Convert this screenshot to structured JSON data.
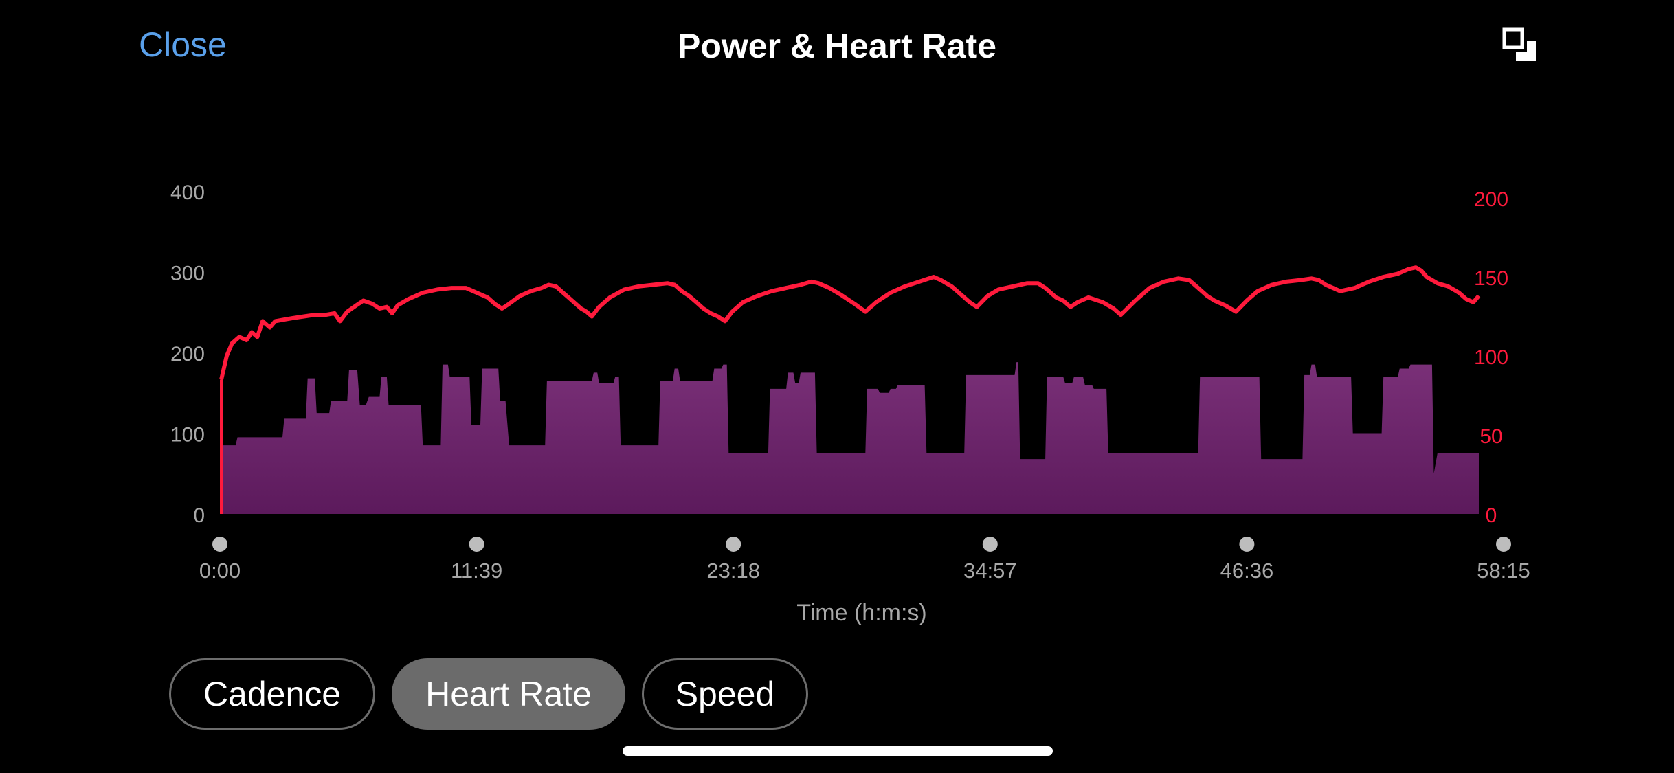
{
  "header": {
    "close_label": "Close",
    "title": "Power & Heart Rate",
    "expand_icon": "expand-icon"
  },
  "toggles": [
    {
      "label": "Cadence",
      "active": false
    },
    {
      "label": "Heart Rate",
      "active": true
    },
    {
      "label": "Speed",
      "active": false
    }
  ],
  "colors": {
    "accent": "#5aa0ea",
    "heart_rate_line": "#ff1a3c",
    "power_fill_top": "#7a3078",
    "power_fill_bottom": "#5c1a5c",
    "axis_text": "#a8a8a8"
  },
  "chart_data": {
    "type": "area",
    "xlabel": "Time (h:m:s)",
    "x_ticks": [
      "0:00",
      "11:39",
      "23:18",
      "34:57",
      "46:36",
      "58:15"
    ],
    "y_left": {
      "ticks": [
        "0",
        "100",
        "200",
        "300",
        "400"
      ],
      "range": [
        0,
        400
      ]
    },
    "y_right": {
      "ticks": [
        "0",
        "50",
        "100",
        "150",
        "200"
      ],
      "range": [
        0,
        200
      ]
    },
    "x_range_seconds": [
      0,
      3495
    ],
    "series": [
      {
        "axis": "left",
        "style": "area",
        "color": "#7a3078",
        "points": [
          [
            0,
            85
          ],
          [
            40,
            85
          ],
          [
            45,
            95
          ],
          [
            170,
            95
          ],
          [
            175,
            118
          ],
          [
            235,
            118
          ],
          [
            240,
            168
          ],
          [
            260,
            168
          ],
          [
            265,
            125
          ],
          [
            300,
            125
          ],
          [
            305,
            140
          ],
          [
            350,
            140
          ],
          [
            355,
            178
          ],
          [
            378,
            178
          ],
          [
            385,
            135
          ],
          [
            402,
            135
          ],
          [
            410,
            145
          ],
          [
            440,
            145
          ],
          [
            445,
            170
          ],
          [
            460,
            170
          ],
          [
            465,
            135
          ],
          [
            555,
            135
          ],
          [
            560,
            85
          ],
          [
            610,
            85
          ],
          [
            615,
            185
          ],
          [
            630,
            185
          ],
          [
            635,
            170
          ],
          [
            690,
            170
          ],
          [
            695,
            110
          ],
          [
            720,
            110
          ],
          [
            725,
            180
          ],
          [
            770,
            180
          ],
          [
            775,
            140
          ],
          [
            790,
            140
          ],
          [
            800,
            85
          ],
          [
            900,
            85
          ],
          [
            905,
            165
          ],
          [
            1030,
            165
          ],
          [
            1035,
            175
          ],
          [
            1045,
            175
          ],
          [
            1050,
            162
          ],
          [
            1090,
            162
          ],
          [
            1095,
            170
          ],
          [
            1105,
            170
          ],
          [
            1110,
            85
          ],
          [
            1215,
            85
          ],
          [
            1220,
            165
          ],
          [
            1255,
            165
          ],
          [
            1260,
            180
          ],
          [
            1270,
            180
          ],
          [
            1275,
            165
          ],
          [
            1365,
            165
          ],
          [
            1370,
            180
          ],
          [
            1390,
            180
          ],
          [
            1395,
            185
          ],
          [
            1405,
            185
          ],
          [
            1410,
            75
          ],
          [
            1520,
            75
          ],
          [
            1525,
            155
          ],
          [
            1570,
            155
          ],
          [
            1575,
            175
          ],
          [
            1590,
            175
          ],
          [
            1595,
            162
          ],
          [
            1605,
            162
          ],
          [
            1610,
            175
          ],
          [
            1650,
            175
          ],
          [
            1655,
            75
          ],
          [
            1790,
            75
          ],
          [
            1795,
            155
          ],
          [
            1825,
            155
          ],
          [
            1830,
            150
          ],
          [
            1855,
            150
          ],
          [
            1860,
            155
          ],
          [
            1875,
            155
          ],
          [
            1880,
            160
          ],
          [
            1955,
            160
          ],
          [
            1960,
            75
          ],
          [
            2065,
            75
          ],
          [
            2070,
            172
          ],
          [
            2205,
            172
          ],
          [
            2210,
            188
          ],
          [
            2215,
            188
          ],
          [
            2220,
            68
          ],
          [
            2290,
            68
          ],
          [
            2295,
            170
          ],
          [
            2340,
            170
          ],
          [
            2345,
            162
          ],
          [
            2365,
            162
          ],
          [
            2370,
            170
          ],
          [
            2395,
            170
          ],
          [
            2400,
            160
          ],
          [
            2420,
            160
          ],
          [
            2425,
            155
          ],
          [
            2460,
            155
          ],
          [
            2465,
            75
          ],
          [
            2715,
            75
          ],
          [
            2720,
            170
          ],
          [
            2885,
            170
          ],
          [
            2890,
            68
          ],
          [
            3005,
            68
          ],
          [
            3010,
            172
          ],
          [
            3025,
            172
          ],
          [
            3030,
            185
          ],
          [
            3040,
            185
          ],
          [
            3045,
            170
          ],
          [
            3140,
            170
          ],
          [
            3145,
            100
          ],
          [
            3225,
            100
          ],
          [
            3230,
            170
          ],
          [
            3270,
            170
          ],
          [
            3275,
            180
          ],
          [
            3300,
            180
          ],
          [
            3305,
            185
          ],
          [
            3365,
            185
          ],
          [
            3370,
            50
          ],
          [
            3380,
            75
          ],
          [
            3495,
            75
          ]
        ]
      },
      {
        "axis": "right",
        "style": "line",
        "color": "#ff1a3c",
        "points": [
          [
            0,
            85
          ],
          [
            15,
            100
          ],
          [
            30,
            108
          ],
          [
            50,
            112
          ],
          [
            70,
            110
          ],
          [
            85,
            115
          ],
          [
            100,
            112
          ],
          [
            115,
            122
          ],
          [
            135,
            118
          ],
          [
            150,
            122
          ],
          [
            175,
            123
          ],
          [
            200,
            124
          ],
          [
            230,
            125
          ],
          [
            260,
            126
          ],
          [
            290,
            126
          ],
          [
            315,
            127
          ],
          [
            330,
            122
          ],
          [
            350,
            128
          ],
          [
            375,
            132
          ],
          [
            395,
            135
          ],
          [
            420,
            133
          ],
          [
            440,
            130
          ],
          [
            460,
            131
          ],
          [
            475,
            127
          ],
          [
            490,
            132
          ],
          [
            520,
            136
          ],
          [
            560,
            140
          ],
          [
            600,
            142
          ],
          [
            640,
            143
          ],
          [
            680,
            143
          ],
          [
            710,
            140
          ],
          [
            740,
            137
          ],
          [
            760,
            133
          ],
          [
            780,
            130
          ],
          [
            800,
            133
          ],
          [
            830,
            138
          ],
          [
            860,
            141
          ],
          [
            890,
            143
          ],
          [
            910,
            145
          ],
          [
            930,
            144
          ],
          [
            950,
            140
          ],
          [
            965,
            137
          ],
          [
            985,
            133
          ],
          [
            1000,
            130
          ],
          [
            1015,
            128
          ],
          [
            1030,
            125
          ],
          [
            1050,
            131
          ],
          [
            1080,
            137
          ],
          [
            1120,
            142
          ],
          [
            1160,
            144
          ],
          [
            1200,
            145
          ],
          [
            1240,
            146
          ],
          [
            1260,
            145
          ],
          [
            1280,
            141
          ],
          [
            1300,
            138
          ],
          [
            1320,
            134
          ],
          [
            1340,
            130
          ],
          [
            1360,
            127
          ],
          [
            1380,
            125
          ],
          [
            1400,
            122
          ],
          [
            1420,
            128
          ],
          [
            1450,
            134
          ],
          [
            1490,
            138
          ],
          [
            1530,
            141
          ],
          [
            1570,
            143
          ],
          [
            1610,
            145
          ],
          [
            1640,
            147
          ],
          [
            1660,
            146
          ],
          [
            1690,
            143
          ],
          [
            1720,
            139
          ],
          [
            1740,
            136
          ],
          [
            1760,
            133
          ],
          [
            1790,
            128
          ],
          [
            1820,
            134
          ],
          [
            1860,
            140
          ],
          [
            1900,
            144
          ],
          [
            1940,
            147
          ],
          [
            1980,
            150
          ],
          [
            2000,
            148
          ],
          [
            2030,
            144
          ],
          [
            2050,
            140
          ],
          [
            2080,
            134
          ],
          [
            2100,
            131
          ],
          [
            2130,
            138
          ],
          [
            2160,
            142
          ],
          [
            2200,
            144
          ],
          [
            2240,
            146
          ],
          [
            2270,
            146
          ],
          [
            2290,
            143
          ],
          [
            2320,
            137
          ],
          [
            2340,
            135
          ],
          [
            2360,
            131
          ],
          [
            2380,
            134
          ],
          [
            2410,
            137
          ],
          [
            2450,
            134
          ],
          [
            2480,
            130
          ],
          [
            2500,
            126
          ],
          [
            2540,
            135
          ],
          [
            2580,
            143
          ],
          [
            2620,
            147
          ],
          [
            2660,
            149
          ],
          [
            2690,
            148
          ],
          [
            2710,
            144
          ],
          [
            2740,
            138
          ],
          [
            2760,
            135
          ],
          [
            2790,
            132
          ],
          [
            2820,
            128
          ],
          [
            2850,
            135
          ],
          [
            2880,
            141
          ],
          [
            2920,
            145
          ],
          [
            2960,
            147
          ],
          [
            3000,
            148
          ],
          [
            3030,
            149
          ],
          [
            3050,
            148
          ],
          [
            3070,
            145
          ],
          [
            3090,
            143
          ],
          [
            3110,
            141
          ],
          [
            3150,
            143
          ],
          [
            3190,
            147
          ],
          [
            3230,
            150
          ],
          [
            3270,
            152
          ],
          [
            3300,
            155
          ],
          [
            3320,
            156
          ],
          [
            3335,
            154
          ],
          [
            3350,
            150
          ],
          [
            3380,
            146
          ],
          [
            3410,
            144
          ],
          [
            3440,
            140
          ],
          [
            3460,
            136
          ],
          [
            3480,
            134
          ],
          [
            3495,
            138
          ]
        ]
      }
    ]
  }
}
